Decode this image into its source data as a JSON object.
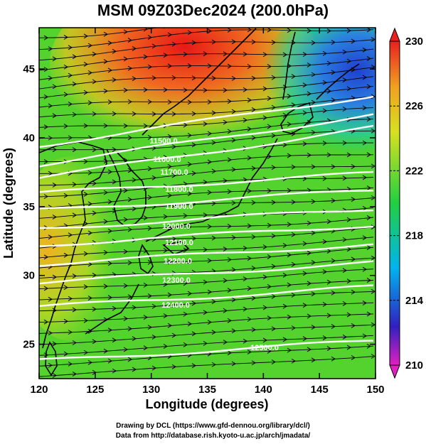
{
  "title": "MSM 09Z03Dec2024 (200.0hPa)",
  "axes": {
    "xlabel": "Longitude (degrees)",
    "ylabel": "Latitude  (degrees)",
    "x_ticks": [
      "120",
      "125",
      "130",
      "135",
      "140",
      "145",
      "150"
    ],
    "y_ticks": [
      "25",
      "30",
      "35",
      "40",
      "45"
    ],
    "xlim": [
      120,
      150
    ],
    "ylim": [
      22.5,
      48
    ]
  },
  "colorbar": {
    "ticks": [
      "230",
      "226",
      "222",
      "218",
      "214",
      "210"
    ],
    "range": [
      210,
      230
    ],
    "colors": [
      "#e020c0",
      "#3020c0",
      "#00b4f0",
      "#20d040",
      "#d8e020",
      "#f0a020",
      "#e82020"
    ]
  },
  "contour_labels": [
    "11500.0",
    "11600.0",
    "11700.0",
    "11800.0",
    "11900.0",
    "12000.0",
    "12100.0",
    "12200.0",
    "12300.0",
    "12400.0",
    "12500.0"
  ],
  "credits": {
    "line1": "Drawing by DCL (https://www.gfd-dennou.org/library/dcl/)",
    "line2": "Data from http://database.rish.kyoto-u.ac.jp/arch/jmadata/"
  }
}
